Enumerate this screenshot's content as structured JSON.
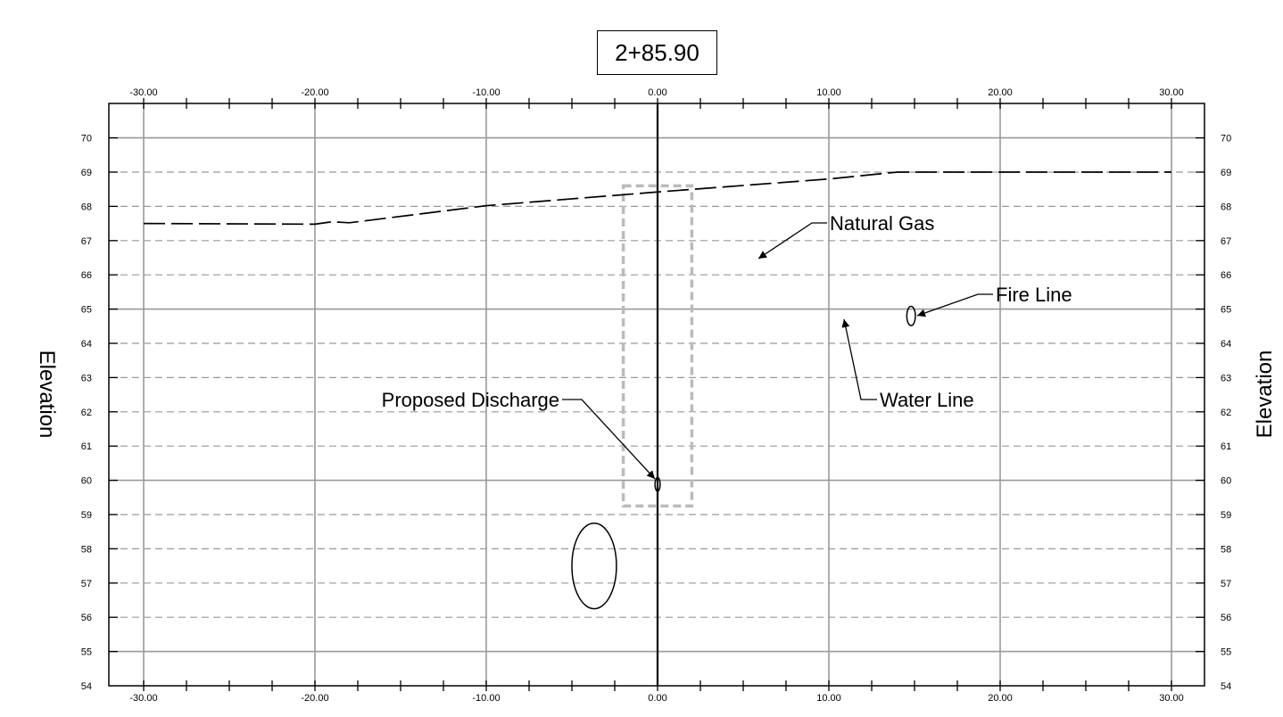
{
  "station": "2+85.90",
  "axes": {
    "left_label": "Elevation",
    "right_label": "Elevation",
    "x_ticks": [
      "-30.00",
      "-20.00",
      "-10.00",
      "0.00",
      "10.00",
      "20.00",
      "30.00"
    ],
    "y_ticks": [
      "54",
      "55",
      "56",
      "57",
      "58",
      "59",
      "60",
      "61",
      "62",
      "63",
      "64",
      "65",
      "66",
      "67",
      "68",
      "69",
      "70"
    ]
  },
  "chart_data": {
    "type": "line",
    "xlim": [
      -32,
      32
    ],
    "ylim": [
      54,
      71
    ],
    "x_ticks": [
      -30,
      -20,
      -10,
      0,
      10,
      20,
      30
    ],
    "grid": true,
    "series": [
      {
        "style": "dashed",
        "x": [
          -30,
          -20,
          -19,
          -18,
          -10,
          0,
          10,
          14,
          20,
          30
        ],
        "y": [
          67.5,
          67.48,
          67.55,
          67.52,
          68.02,
          68.42,
          68.8,
          69.0,
          69.0,
          69.0
        ]
      }
    ],
    "objects": [
      {
        "kind": "ellipse",
        "x": -3.7,
        "y": 57.5,
        "rx": 1.3,
        "ry": 1.25
      },
      {
        "kind": "ellipse",
        "x": 0.0,
        "y": 59.88,
        "rx": 0.15,
        "ry": 0.2
      },
      {
        "kind": "ellipse",
        "x": 14.8,
        "y": 64.8,
        "rx": 0.25,
        "ry": 0.28
      }
    ],
    "trench": {
      "x": [
        -2,
        2
      ],
      "y": [
        59.25,
        68.6
      ]
    },
    "annotations": [
      {
        "id": "natural-gas",
        "text": "Natural Gas"
      },
      {
        "id": "water-line",
        "text": "Water Line"
      },
      {
        "id": "fire-line",
        "text": "Fire Line"
      },
      {
        "id": "proposed-discharge",
        "text": "Proposed Discharge"
      }
    ]
  }
}
